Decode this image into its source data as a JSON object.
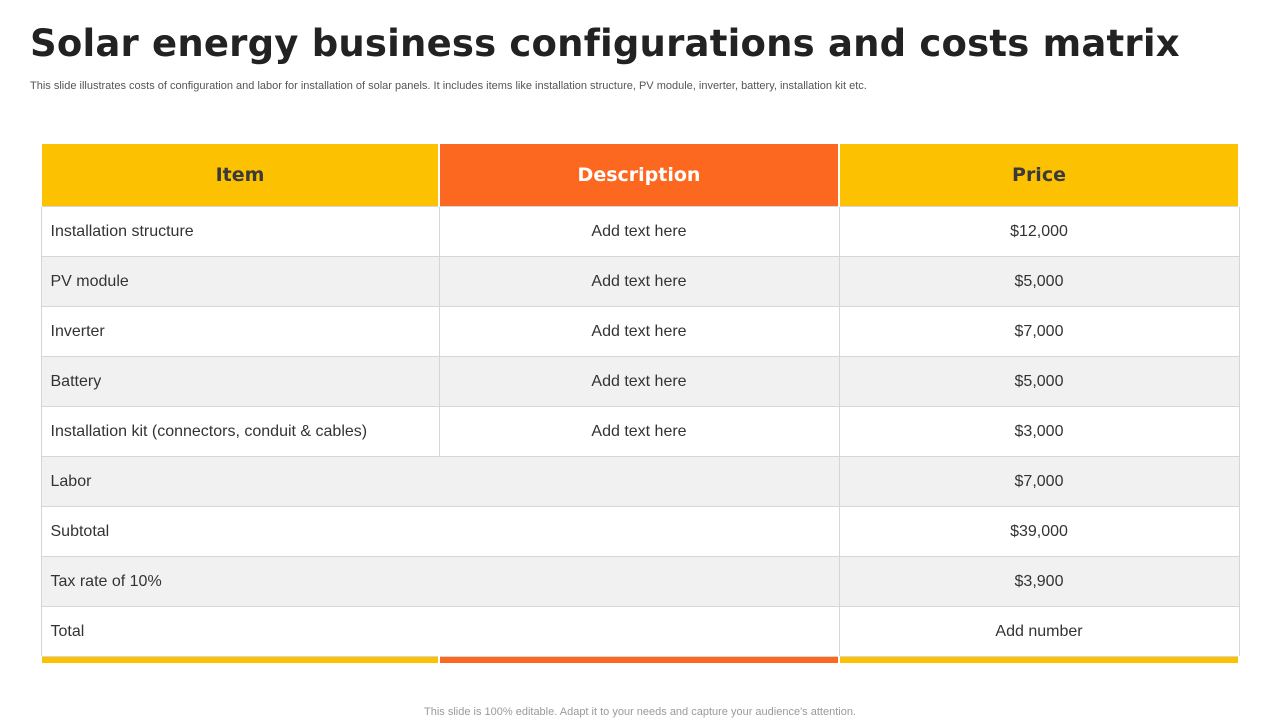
{
  "slide": {
    "title": "Solar energy business configurations and costs matrix",
    "subtitle": "This slide illustrates costs of configuration and labor for installation of solar panels. It includes items like installation structure, PV module, inverter, battery,  installation kit etc.",
    "footer": "This slide is 100% editable. Adapt it to your needs and capture your audience's attention."
  },
  "colors": {
    "yellow": "#fcc100",
    "orange": "#fd6820",
    "alt_row": "#f1f1f1"
  },
  "table": {
    "headers": {
      "item": "Item",
      "description": "Description",
      "price": "Price"
    },
    "items": [
      {
        "item": "Installation  structure",
        "description": "Add text here",
        "price": "$12,000"
      },
      {
        "item": "PV module",
        "description": "Add text here",
        "price": "$5,000"
      },
      {
        "item": "Inverter",
        "description": "Add text here",
        "price": "$7,000"
      },
      {
        "item": "Battery",
        "description": "Add text here",
        "price": "$5,000"
      },
      {
        "item": "Installation  kit (connectors,  conduit & cables)",
        "description": "Add text here",
        "price": "$3,000"
      }
    ],
    "summary": [
      {
        "label": "Labor",
        "price": "$7,000"
      },
      {
        "label": "Subtotal",
        "price": "$39,000"
      },
      {
        "label": "Tax rate of 10%",
        "price": "$3,900"
      },
      {
        "label": "Total",
        "price": "Add number"
      }
    ]
  }
}
